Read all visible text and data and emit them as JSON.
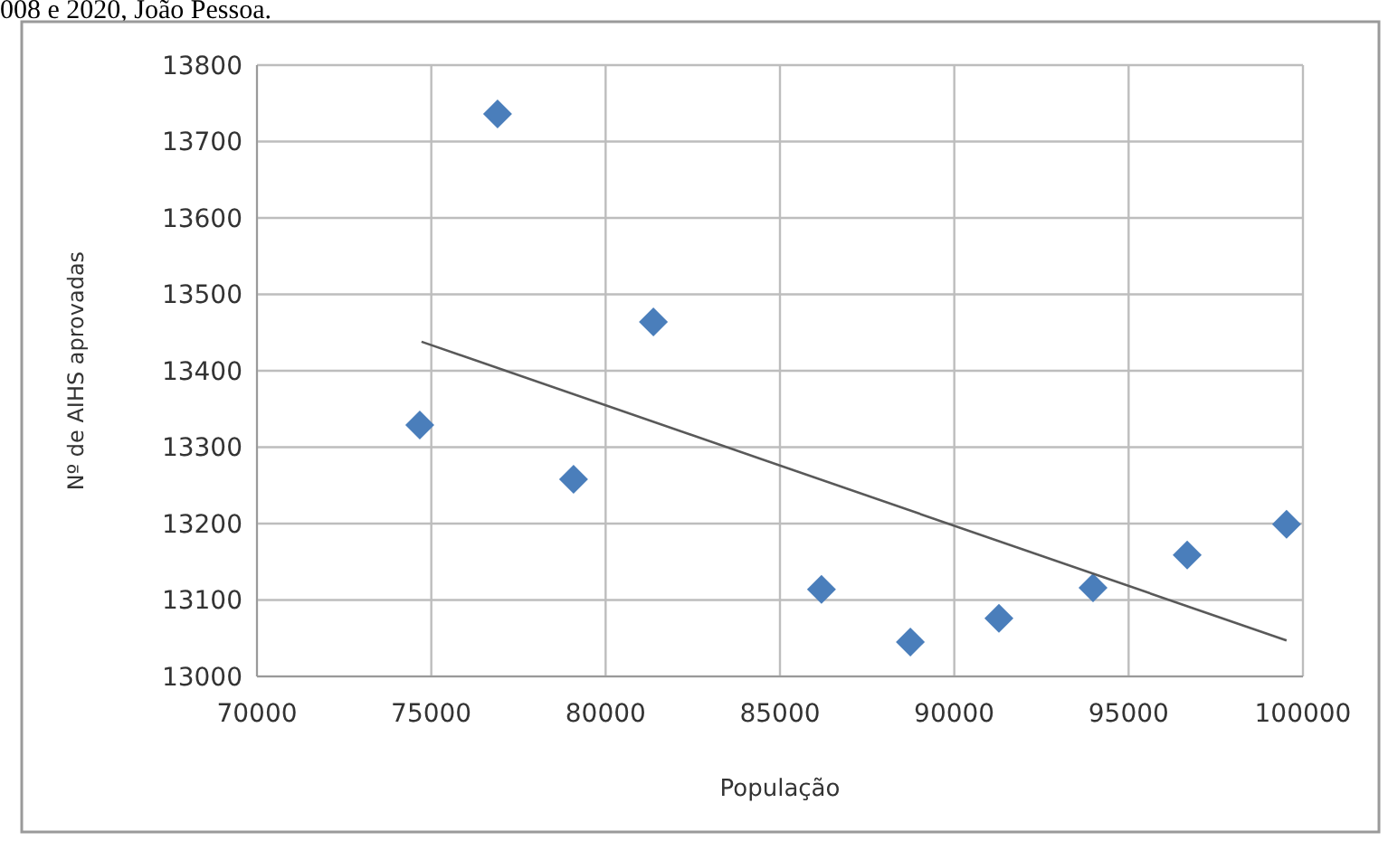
{
  "chart_data": {
    "type": "scatter",
    "xlabel": "População",
    "ylabel": "Nº de AIHS aprovadas",
    "annotations": [
      "008 e 2020, João Pessoa."
    ],
    "xlim": [
      70000,
      100000
    ],
    "xticks": [
      70000,
      75000,
      80000,
      85000,
      90000,
      95000,
      100000
    ],
    "ylim": [
      13000,
      13800
    ],
    "yticks": [
      13000,
      13100,
      13200,
      13300,
      13400,
      13500,
      13600,
      13700,
      13800
    ],
    "grid": true,
    "marker": "diamond",
    "series": [
      {
        "color": "#4a7ebb",
        "x": [
          74670,
          76900,
          79080,
          81370,
          86190,
          88740,
          91280,
          93980,
          96680,
          99530
        ],
        "values": [
          13329,
          13736,
          13258,
          13464,
          13114,
          13045,
          13076,
          13116,
          13159,
          13199
        ]
      },
      {
        "type": "line",
        "color": "#595959",
        "x": [
          74720,
          99530
        ],
        "values": [
          13438,
          13047
        ],
        "marker": "none",
        "line_style": "solid"
      }
    ]
  }
}
